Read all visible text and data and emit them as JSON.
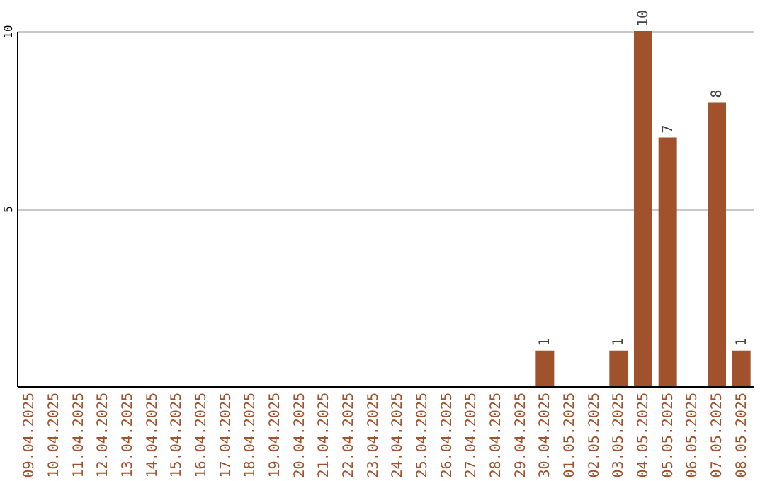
{
  "chart_data": {
    "type": "bar",
    "categories": [
      "09.04.2025",
      "10.04.2025",
      "11.04.2025",
      "12.04.2025",
      "13.04.2025",
      "14.04.2025",
      "15.04.2025",
      "16.04.2025",
      "17.04.2025",
      "18.04.2025",
      "19.04.2025",
      "20.04.2025",
      "21.04.2025",
      "22.04.2025",
      "23.04.2025",
      "24.04.2025",
      "25.04.2025",
      "26.04.2025",
      "27.04.2025",
      "28.04.2025",
      "29.04.2025",
      "30.04.2025",
      "01.05.2025",
      "02.05.2025",
      "03.05.2025",
      "04.05.2025",
      "05.05.2025",
      "06.05.2025",
      "07.05.2025",
      "08.05.2025"
    ],
    "values": [
      null,
      null,
      null,
      null,
      null,
      null,
      null,
      null,
      null,
      null,
      null,
      null,
      null,
      null,
      null,
      null,
      null,
      null,
      null,
      null,
      null,
      1,
      null,
      null,
      1,
      10,
      7,
      null,
      8,
      1
    ],
    "color": "#a0522d",
    "ylim": [
      0,
      10
    ],
    "yticks": [
      5,
      10
    ],
    "grid": "y",
    "data_labels": true
  }
}
